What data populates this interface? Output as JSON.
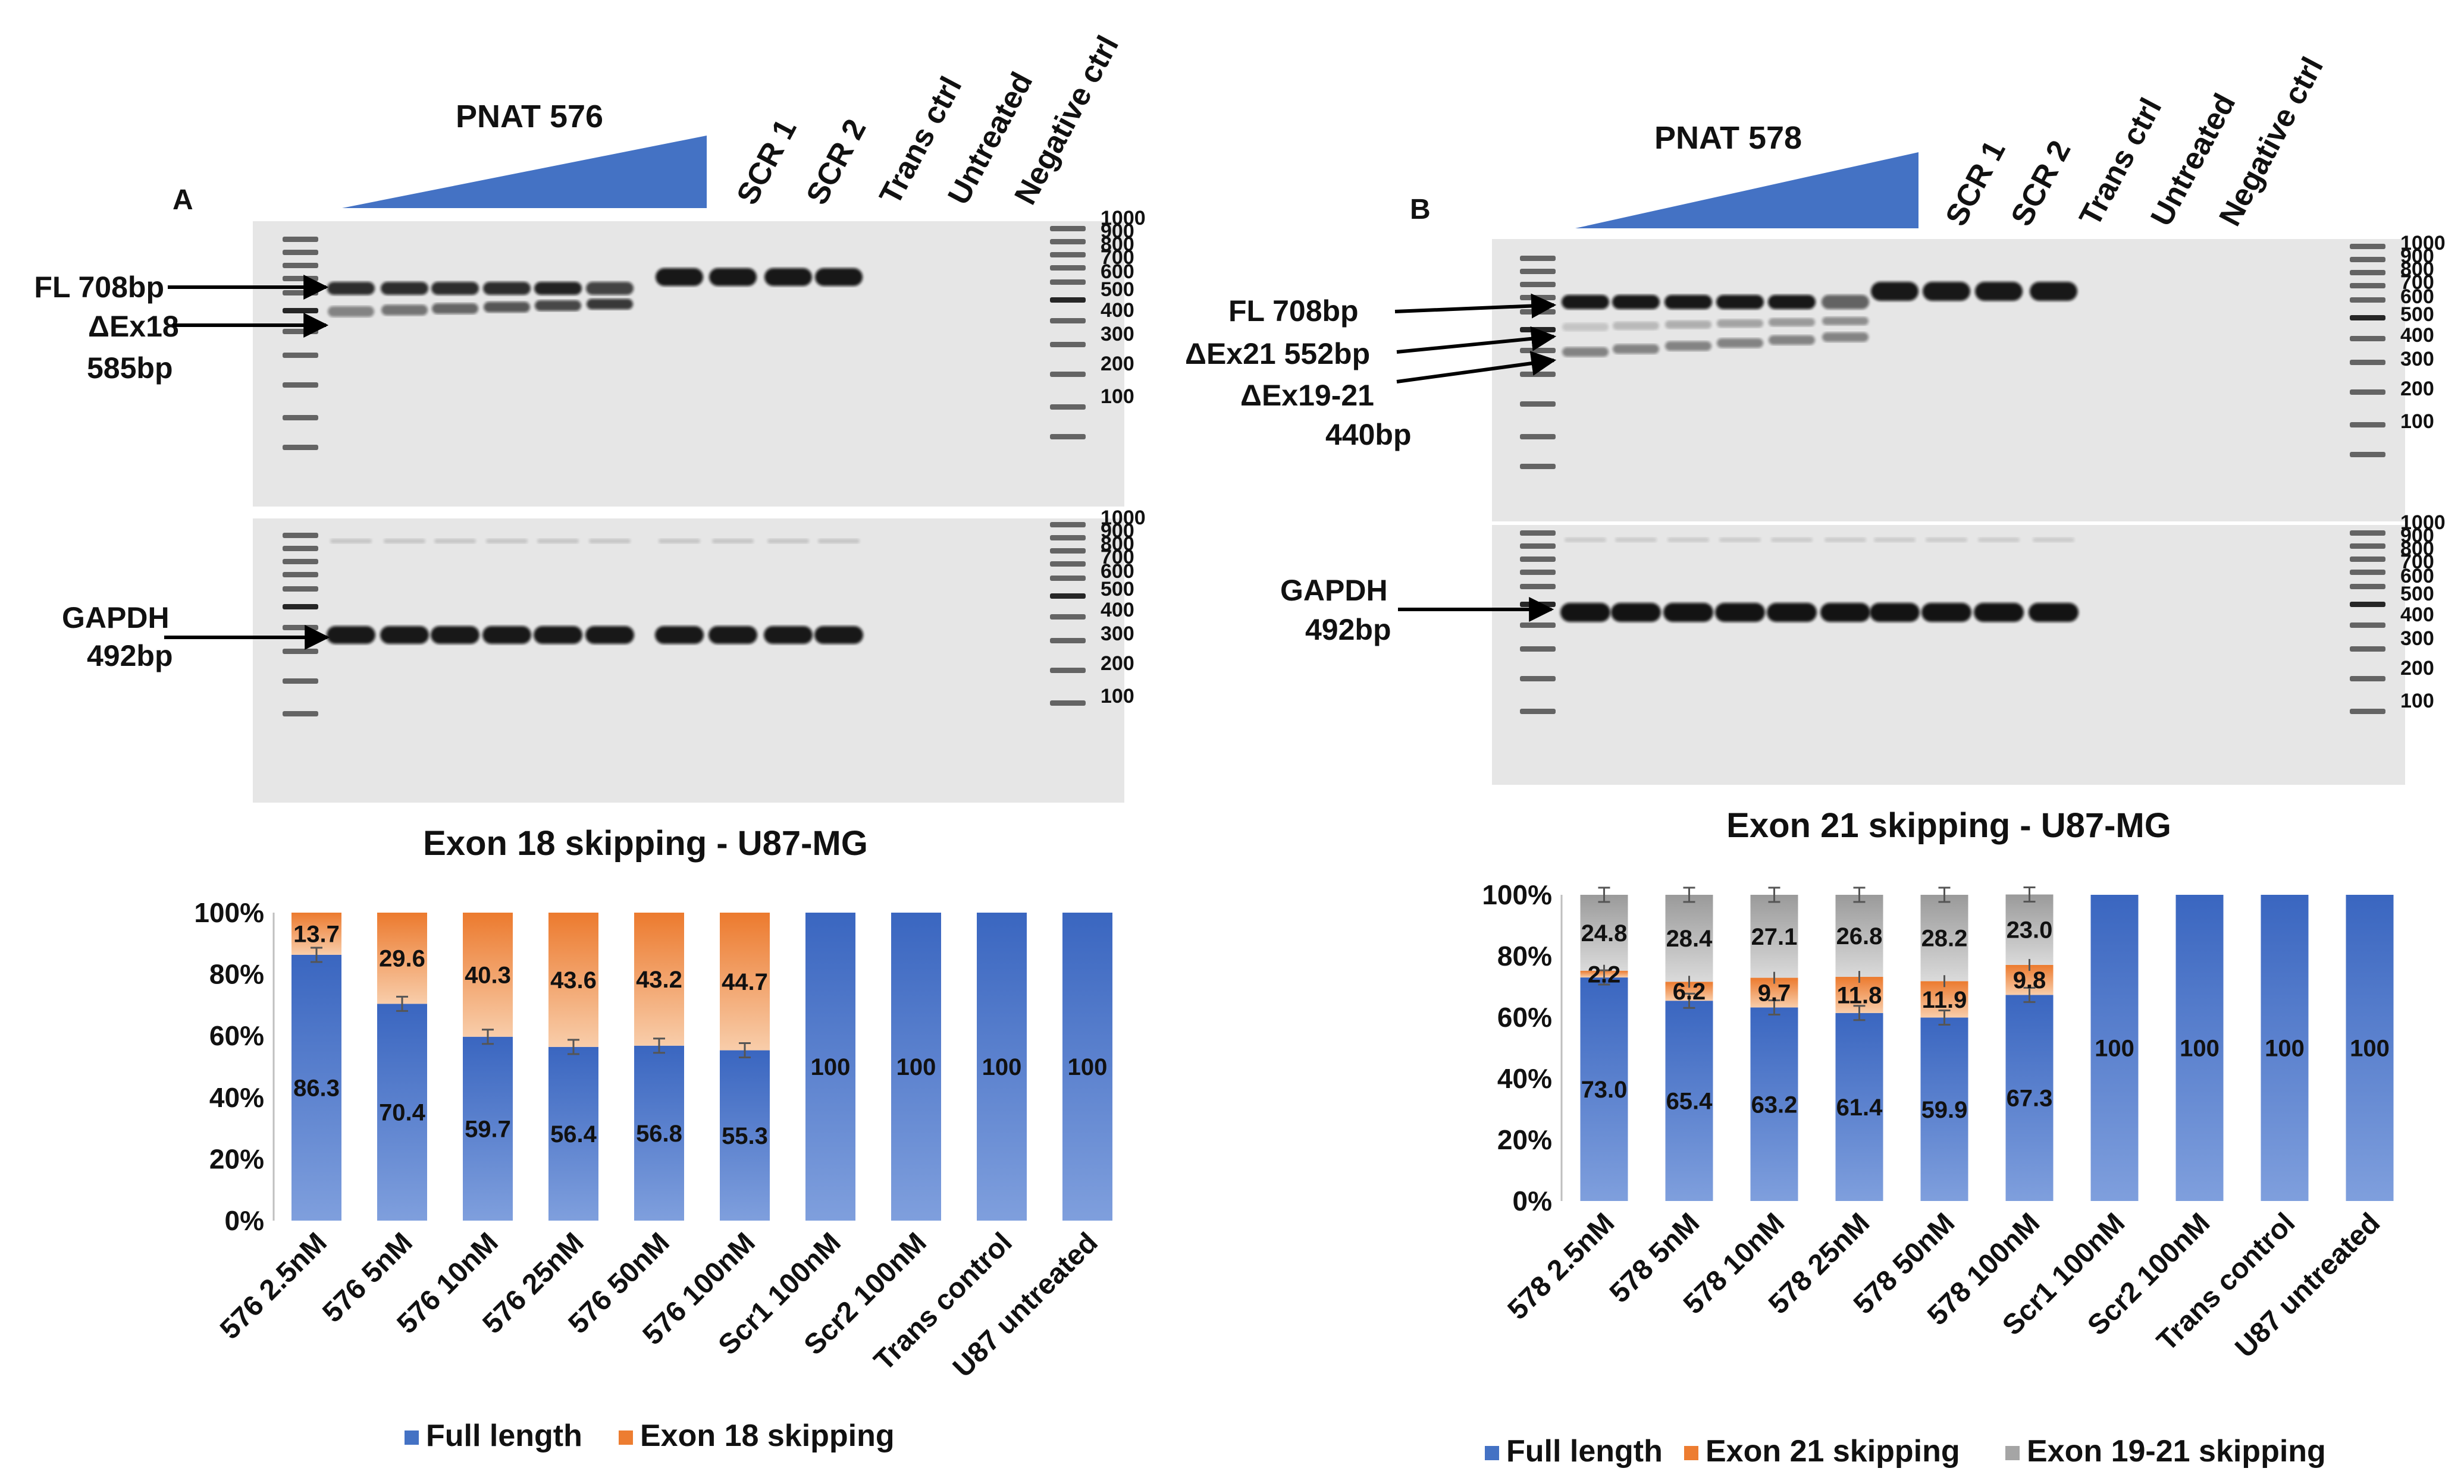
{
  "panels": [
    {
      "panel_label": "A",
      "treatment": "PNAT 576",
      "lanes": [
        "SCR 1",
        "SCR 2",
        "Trans ctrl",
        "Untreated",
        "Negative ctrl"
      ],
      "band_labels": {
        "fl": "FL 708bp",
        "skip1": "ΔEx18",
        "skip1_size": "585bp",
        "gapdh": "GAPDH",
        "gapdh_size": "492bp"
      },
      "ladder": [
        "1000",
        "900",
        "800",
        "700",
        "600",
        "500",
        "400",
        "300",
        "200",
        "100"
      ]
    },
    {
      "panel_label": "B",
      "treatment": "PNAT 578",
      "lanes": [
        "SCR 1",
        "SCR 2",
        "Trans ctrl",
        "Untreated",
        "Negative ctrl"
      ],
      "band_labels": {
        "fl": "FL 708bp",
        "skip1": "ΔEx21 552bp",
        "skip2": "ΔEx19-21",
        "skip2_size": "440bp",
        "gapdh": "GAPDH",
        "gapdh_size": "492bp"
      },
      "ladder": [
        "1000",
        "900",
        "800",
        "700",
        "600",
        "500",
        "400",
        "300",
        "200",
        "100"
      ]
    }
  ],
  "chart_data": [
    {
      "type": "bar",
      "stacked": true,
      "title": "Exon 18 skipping - U87-MG",
      "categories": [
        "576 2.5nM",
        "576 5nM",
        "576 10nM",
        "576 25nM",
        "576 50nM",
        "576 100nM",
        "Scr1 100nM",
        "Scr2 100nM",
        "Trans control",
        "U87 untreated"
      ],
      "series": [
        {
          "name": "Full length",
          "color": "#4472C4",
          "values": [
            86.3,
            70.4,
            59.7,
            56.4,
            56.8,
            55.3,
            100,
            100,
            100,
            100
          ]
        },
        {
          "name": "Exon 18 skipping",
          "color": "#ED7D31",
          "values": [
            13.7,
            29.6,
            40.3,
            43.6,
            43.2,
            44.7,
            0,
            0,
            0,
            0
          ]
        }
      ],
      "data_labels": [
        [
          "86.3",
          "70.4",
          "59.7",
          "56.4",
          "56.8",
          "55.3",
          "100",
          "100",
          "100",
          "100"
        ],
        [
          "13.7",
          "29.6",
          "40.3",
          "43.6",
          "43.2",
          "44.7",
          "",
          "",
          "",
          ""
        ]
      ],
      "y_ticks": [
        "0%",
        "20%",
        "40%",
        "60%",
        "80%",
        "100%"
      ],
      "ylim": [
        0,
        100
      ],
      "legend_position": "bottom"
    },
    {
      "type": "bar",
      "stacked": true,
      "title": "Exon 21 skipping - U87-MG",
      "categories": [
        "578 2.5nM",
        "578 5nM",
        "578 10nM",
        "578 25nM",
        "578 50nM",
        "578 100nM",
        "Scr1 100nM",
        "Scr2 100nM",
        "Trans control",
        "U87 untreated"
      ],
      "series": [
        {
          "name": "Full length",
          "color": "#4472C4",
          "values": [
            73.0,
            65.4,
            63.2,
            61.4,
            59.9,
            67.3,
            100,
            100,
            100,
            100
          ]
        },
        {
          "name": "Exon 21 skipping",
          "color": "#ED7D31",
          "values": [
            2.2,
            6.2,
            9.7,
            11.8,
            11.9,
            9.8,
            0,
            0,
            0,
            0
          ]
        },
        {
          "name": "Exon 19-21 skipping",
          "color": "#A5A5A5",
          "values": [
            24.8,
            28.4,
            27.1,
            26.8,
            28.2,
            23.0,
            0,
            0,
            0,
            0
          ]
        }
      ],
      "data_labels": [
        [
          "73.0",
          "65.4",
          "63.2",
          "61.4",
          "59.9",
          "67.3",
          "100",
          "100",
          "100",
          "100"
        ],
        [
          "2.2",
          "6.2",
          "9.7",
          "11.8",
          "11.9",
          "9.8",
          "",
          "",
          "",
          ""
        ],
        [
          "24.8",
          "28.4",
          "27.1",
          "26.8",
          "28.2",
          "23.0",
          "",
          "",
          "",
          ""
        ]
      ],
      "y_ticks": [
        "0%",
        "20%",
        "40%",
        "60%",
        "80%",
        "100%"
      ],
      "ylim": [
        0,
        100
      ],
      "legend_position": "bottom"
    }
  ]
}
